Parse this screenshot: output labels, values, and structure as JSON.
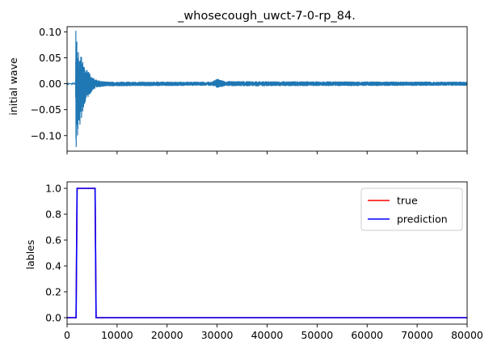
{
  "chart_data": [
    {
      "type": "line",
      "title": "_whosecough_uwct-7-0-rp_84.",
      "ylabel": "initial wave",
      "xlabel": "",
      "xlim": [
        0,
        80000
      ],
      "ylim": [
        -0.13,
        0.11
      ],
      "x_ticks": [
        0,
        10000,
        20000,
        30000,
        40000,
        50000,
        60000,
        70000,
        80000
      ],
      "y_ticks": [
        0.1,
        0.05,
        0.0,
        -0.05,
        -0.1
      ],
      "y_tick_labels": [
        "0.10",
        "0.05",
        "0.00",
        "−0.05",
        "−0.10"
      ],
      "x_tick_labels_visible": false,
      "grid": false,
      "series": [
        {
          "color": "#1f77b4",
          "envelope": [
            {
              "x": 0,
              "lo": -0.001,
              "hi": 0.001
            },
            {
              "x": 1700,
              "lo": -0.001,
              "hi": 0.001
            },
            {
              "x": 1750,
              "lo": -0.122,
              "hi": 0.102
            },
            {
              "x": 2100,
              "lo": -0.1,
              "hi": 0.07
            },
            {
              "x": 2600,
              "lo": -0.08,
              "hi": 0.06
            },
            {
              "x": 3200,
              "lo": -0.055,
              "hi": 0.045
            },
            {
              "x": 3800,
              "lo": -0.03,
              "hi": 0.03
            },
            {
              "x": 4500,
              "lo": -0.022,
              "hi": 0.02
            },
            {
              "x": 5200,
              "lo": -0.012,
              "hi": 0.012
            },
            {
              "x": 6000,
              "lo": -0.007,
              "hi": 0.007
            },
            {
              "x": 8000,
              "lo": -0.005,
              "hi": 0.004
            },
            {
              "x": 29000,
              "lo": -0.004,
              "hi": 0.004
            },
            {
              "x": 30000,
              "lo": -0.008,
              "hi": 0.01
            },
            {
              "x": 30500,
              "lo": -0.007,
              "hi": 0.008
            },
            {
              "x": 31500,
              "lo": -0.005,
              "hi": 0.005
            },
            {
              "x": 80000,
              "lo": -0.004,
              "hi": 0.004
            }
          ]
        }
      ]
    },
    {
      "type": "line",
      "title": "",
      "ylabel": "lables",
      "xlabel": "",
      "xlim": [
        0,
        80000
      ],
      "ylim": [
        -0.05,
        1.05
      ],
      "x_ticks": [
        0,
        10000,
        20000,
        30000,
        40000,
        50000,
        60000,
        70000,
        80000
      ],
      "x_tick_labels": [
        "0",
        "10000",
        "20000",
        "30000",
        "40000",
        "50000",
        "60000",
        "70000",
        "80000"
      ],
      "y_ticks": [
        0.0,
        0.2,
        0.4,
        0.6,
        0.8,
        1.0
      ],
      "y_tick_labels": [
        "0.0",
        "0.2",
        "0.4",
        "0.6",
        "0.8",
        "1.0"
      ],
      "grid": false,
      "legend_position": "top-right",
      "series": [
        {
          "name": "true",
          "color": "#ff0000",
          "x": [
            0,
            1800,
            2000,
            5600,
            5800,
            80000
          ],
          "y": [
            0,
            0,
            1,
            1,
            0,
            0
          ]
        },
        {
          "name": "prediction",
          "color": "#0000ff",
          "x": [
            0,
            1800,
            2000,
            5600,
            5800,
            80000
          ],
          "y": [
            0,
            0,
            1,
            1,
            0,
            0
          ]
        }
      ]
    }
  ]
}
